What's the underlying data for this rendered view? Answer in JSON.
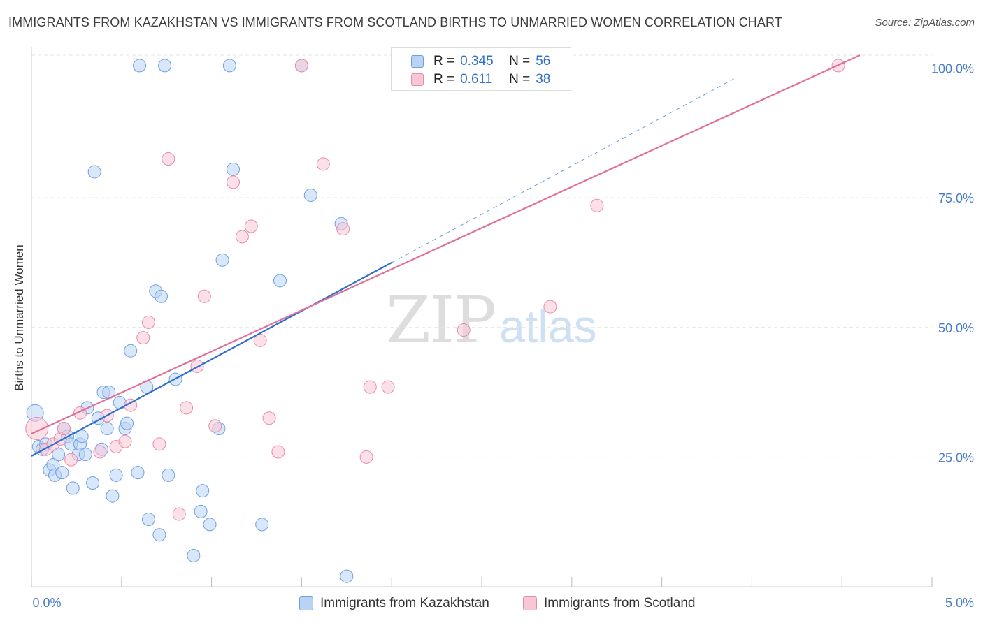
{
  "header": {
    "title": "IMMIGRANTS FROM KAZAKHSTAN VS IMMIGRANTS FROM SCOTLAND BIRTHS TO UNMARRIED WOMEN CORRELATION CHART",
    "source": "Source: ZipAtlas.com"
  },
  "legend": {
    "r_label": "R =",
    "n_label": "N =",
    "kazakhstan": {
      "r": "0.345",
      "n": "56"
    },
    "scotland": {
      "r": "0.611",
      "n": "38"
    }
  },
  "watermark": {
    "zip": "ZIP",
    "atlas": "atlas"
  },
  "colors": {
    "kazakhstan_fill": "#b9d3f5",
    "kazakhstan_stroke": "#6f9fe0",
    "kazakhstan_line": "#2f6fcc",
    "scotland_fill": "#f8c7d6",
    "scotland_stroke": "#e98aa9",
    "scotland_line": "#e0709a",
    "tick_label": "#4a7cc9",
    "grid": "#e3e3e3"
  },
  "chart_data": {
    "type": "scatter",
    "title": "IMMIGRANTS FROM KAZAKHSTAN VS IMMIGRANTS FROM SCOTLAND BIRTHS TO UNMARRIED WOMEN CORRELATION CHART",
    "xlabel": "",
    "ylabel": "Births to Unmarried Women",
    "xlim": [
      0,
      5
    ],
    "ylim": [
      0,
      102.5
    ],
    "x_tick_labels": [
      "0.0%",
      "5.0%"
    ],
    "y_ticks": [
      25,
      50,
      75,
      100
    ],
    "y_tick_labels": [
      "25.0%",
      "50.0%",
      "75.0%",
      "100.0%"
    ],
    "grid": true,
    "legend_position": "top-center",
    "series": [
      {
        "name": "Immigrants from Kazakhstan",
        "r": 0.345,
        "n": 56,
        "trend": {
          "x0": 0,
          "y0": 25.2,
          "x1": 2.0,
          "y1": 62.5,
          "dash_to_x": 3.9
        },
        "points": [
          [
            0.02,
            33.5,
            12
          ],
          [
            0.04,
            27.0,
            9
          ],
          [
            0.06,
            26.5,
            9
          ],
          [
            0.08,
            27.5,
            9
          ],
          [
            0.1,
            22.5,
            9
          ],
          [
            0.12,
            23.5,
            9
          ],
          [
            0.13,
            21.5,
            9
          ],
          [
            0.15,
            25.5,
            9
          ],
          [
            0.17,
            22.0,
            9
          ],
          [
            0.18,
            30.5,
            9
          ],
          [
            0.2,
            29.0,
            9
          ],
          [
            0.22,
            27.5,
            9
          ],
          [
            0.23,
            19.0,
            9
          ],
          [
            0.26,
            25.5,
            9
          ],
          [
            0.27,
            27.5,
            9
          ],
          [
            0.28,
            29.0,
            9
          ],
          [
            0.3,
            25.5,
            9
          ],
          [
            0.31,
            34.5,
            9
          ],
          [
            0.34,
            20.0,
            9
          ],
          [
            0.35,
            80.0,
            9
          ],
          [
            0.37,
            32.5,
            9
          ],
          [
            0.39,
            26.5,
            9
          ],
          [
            0.4,
            37.5,
            9
          ],
          [
            0.42,
            30.5,
            9
          ],
          [
            0.43,
            37.5,
            9
          ],
          [
            0.45,
            17.5,
            9
          ],
          [
            0.47,
            21.5,
            9
          ],
          [
            0.49,
            35.5,
            9
          ],
          [
            0.52,
            30.5,
            9
          ],
          [
            0.53,
            31.5,
            9
          ],
          [
            0.55,
            45.5,
            9
          ],
          [
            0.59,
            22.0,
            9
          ],
          [
            0.6,
            100.5,
            9
          ],
          [
            0.64,
            38.5,
            9
          ],
          [
            0.65,
            13.0,
            9
          ],
          [
            0.69,
            57.0,
            9
          ],
          [
            0.71,
            10.0,
            9
          ],
          [
            0.72,
            56.0,
            9
          ],
          [
            0.74,
            100.5,
            9
          ],
          [
            0.76,
            21.5,
            9
          ],
          [
            0.8,
            40.0,
            9
          ],
          [
            0.9,
            6.0,
            9
          ],
          [
            0.94,
            14.5,
            9
          ],
          [
            0.95,
            18.5,
            9
          ],
          [
            0.99,
            12.0,
            9
          ],
          [
            1.04,
            30.5,
            9
          ],
          [
            1.06,
            63.0,
            9
          ],
          [
            1.1,
            100.5,
            9
          ],
          [
            1.12,
            80.5,
            9
          ],
          [
            1.28,
            12.0,
            9
          ],
          [
            1.38,
            59.0,
            9
          ],
          [
            1.5,
            100.5,
            9
          ],
          [
            1.55,
            75.5,
            9
          ],
          [
            1.72,
            70.0,
            9
          ],
          [
            1.75,
            2.0,
            9
          ]
        ]
      },
      {
        "name": "Immigrants from Scotland",
        "r": 0.611,
        "n": 38,
        "trend": {
          "x0": 0,
          "y0": 29.5,
          "x1": 4.6,
          "y1": 102.5
        },
        "points": [
          [
            0.03,
            30.5,
            16
          ],
          [
            0.08,
            26.5,
            9
          ],
          [
            0.12,
            27.5,
            9
          ],
          [
            0.16,
            28.5,
            9
          ],
          [
            0.18,
            30.5,
            9
          ],
          [
            0.22,
            24.5,
            9
          ],
          [
            0.27,
            33.5,
            9
          ],
          [
            0.38,
            26.0,
            9
          ],
          [
            0.42,
            33.0,
            9
          ],
          [
            0.47,
            27.0,
            9
          ],
          [
            0.52,
            28.0,
            9
          ],
          [
            0.55,
            35.0,
            9
          ],
          [
            0.62,
            48.0,
            9
          ],
          [
            0.65,
            51.0,
            9
          ],
          [
            0.71,
            27.5,
            9
          ],
          [
            0.76,
            82.5,
            9
          ],
          [
            0.82,
            14.0,
            9
          ],
          [
            0.86,
            34.5,
            9
          ],
          [
            0.92,
            42.5,
            9
          ],
          [
            0.96,
            56.0,
            9
          ],
          [
            1.02,
            31.0,
            9
          ],
          [
            1.12,
            78.0,
            9
          ],
          [
            1.17,
            67.5,
            9
          ],
          [
            1.22,
            69.5,
            9
          ],
          [
            1.27,
            47.5,
            9
          ],
          [
            1.32,
            32.5,
            9
          ],
          [
            1.37,
            26.0,
            9
          ],
          [
            1.5,
            100.5,
            9
          ],
          [
            1.62,
            81.5,
            9
          ],
          [
            1.73,
            69.0,
            9
          ],
          [
            1.86,
            25.0,
            9
          ],
          [
            1.88,
            38.5,
            9
          ],
          [
            1.98,
            38.5,
            9
          ],
          [
            2.4,
            49.5,
            9
          ],
          [
            2.88,
            54.0,
            9
          ],
          [
            3.14,
            73.5,
            9
          ],
          [
            4.48,
            100.5,
            9
          ]
        ]
      }
    ]
  },
  "axis": {
    "ylabel": "Births to Unmarried Women",
    "x_left": "0.0%",
    "x_right": "5.0%"
  },
  "bottom_legend": {
    "kazakhstan": "Immigrants from Kazakhstan",
    "scotland": "Immigrants from Scotland"
  }
}
